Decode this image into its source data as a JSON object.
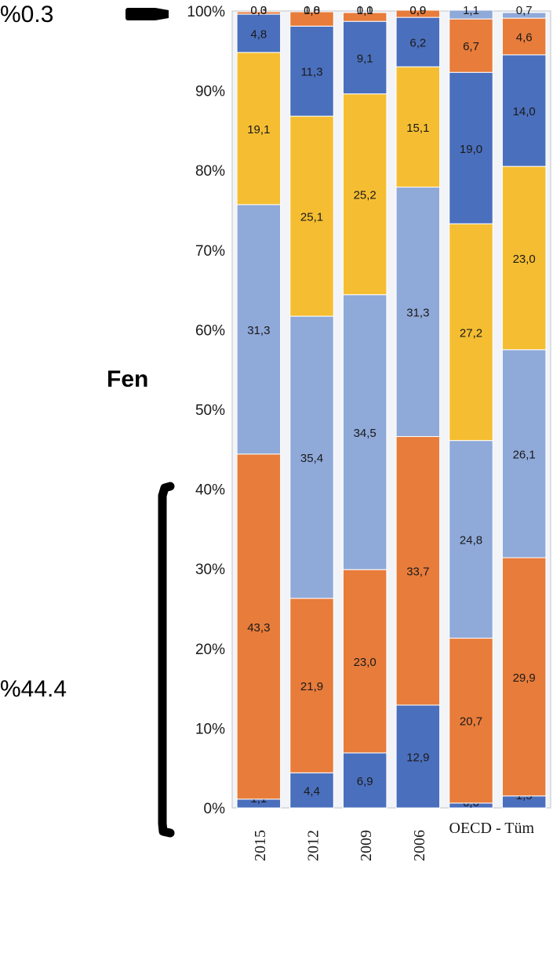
{
  "annotations": {
    "top_percent": "%0.3",
    "subject": "Fen",
    "bottom_percent": "%44.4"
  },
  "colors": {
    "dark_blue": "#4a6fbd",
    "orange": "#e87c3b",
    "light_blue": "#8fa9d9",
    "yellow": "#f5be32",
    "bracket": "#000000"
  },
  "chart_data": {
    "type": "bar",
    "stacked": true,
    "categories": [
      "2015",
      "2012",
      "2009",
      "2006",
      "OECD - Tüm"
    ],
    "category_labels": [
      "2015",
      "2012",
      "2009",
      "2006",
      "OECD - Tüm"
    ],
    "columns": [
      {
        "category": "2015",
        "segments": [
          {
            "value": 1.1,
            "label": "1,1",
            "color": "dark_blue"
          },
          {
            "value": 43.3,
            "label": "43,3",
            "color": "orange"
          },
          {
            "value": 31.3,
            "label": "31,3",
            "color": "light_blue"
          },
          {
            "value": 19.1,
            "label": "19,1",
            "color": "yellow"
          },
          {
            "value": 4.8,
            "label": "4,8",
            "color": "dark_blue"
          },
          {
            "value": 0.3,
            "label": "0,3",
            "color": "orange"
          },
          {
            "value": 0.0,
            "label": "0,0",
            "color": "light_blue"
          }
        ]
      },
      {
        "category": "2012",
        "segments": [
          {
            "value": 4.4,
            "label": "4,4",
            "color": "dark_blue"
          },
          {
            "value": 21.9,
            "label": "21,9",
            "color": "orange"
          },
          {
            "value": 35.4,
            "label": "35,4",
            "color": "light_blue"
          },
          {
            "value": 25.1,
            "label": "25,1",
            "color": "yellow"
          },
          {
            "value": 11.3,
            "label": "11,3",
            "color": "dark_blue"
          },
          {
            "value": 1.8,
            "label": "1,8",
            "color": "orange"
          },
          {
            "value": 0.0,
            "label": "0,0",
            "color": "light_blue"
          }
        ]
      },
      {
        "category": "2009",
        "segments": [
          {
            "value": 6.9,
            "label": "6,9",
            "color": "dark_blue"
          },
          {
            "value": 23.0,
            "label": "23,0",
            "color": "orange"
          },
          {
            "value": 34.5,
            "label": "34,5",
            "color": "light_blue"
          },
          {
            "value": 25.2,
            "label": "25,2",
            "color": "yellow"
          },
          {
            "value": 9.1,
            "label": "9,1",
            "color": "dark_blue"
          },
          {
            "value": 1.1,
            "label": "1,1",
            "color": "orange"
          },
          {
            "value": 0.0,
            "label": "0,0",
            "color": "light_blue"
          }
        ]
      },
      {
        "category": "2006",
        "segments": [
          {
            "value": 12.9,
            "label": "12,9",
            "color": "dark_blue"
          },
          {
            "value": 33.7,
            "label": "33,7",
            "color": "orange"
          },
          {
            "value": 31.3,
            "label": "31,3",
            "color": "light_blue"
          },
          {
            "value": 15.1,
            "label": "15,1",
            "color": "yellow"
          },
          {
            "value": 6.2,
            "label": "6,2",
            "color": "dark_blue"
          },
          {
            "value": 0.9,
            "label": "0,9",
            "color": "orange"
          },
          {
            "value": 0.0,
            "label": "0,0",
            "color": "light_blue"
          }
        ]
      },
      {
        "category": "OECD - Tüm",
        "segments": [
          {
            "value": 0.6,
            "label": "0,6",
            "color": "dark_blue"
          },
          {
            "value": 20.7,
            "label": "20,7",
            "color": "orange"
          },
          {
            "value": 24.8,
            "label": "24,8",
            "color": "light_blue"
          },
          {
            "value": 27.2,
            "label": "27,2",
            "color": "yellow"
          },
          {
            "value": 19.0,
            "label": "19,0",
            "color": "dark_blue"
          },
          {
            "value": 6.7,
            "label": "6,7",
            "color": "orange"
          },
          {
            "value": 1.1,
            "label": "1,1",
            "color": "light_blue"
          }
        ]
      },
      {
        "category": "",
        "segments": [
          {
            "value": 1.5,
            "label": "1,5",
            "color": "dark_blue"
          },
          {
            "value": 29.9,
            "label": "29,9",
            "color": "orange"
          },
          {
            "value": 26.1,
            "label": "26,1",
            "color": "light_blue"
          },
          {
            "value": 23.0,
            "label": "23,0",
            "color": "yellow"
          },
          {
            "value": 14.0,
            "label": "14,0",
            "color": "dark_blue"
          },
          {
            "value": 4.6,
            "label": "4,6",
            "color": "orange"
          },
          {
            "value": 0.7,
            "label": "0,7",
            "color": "light_blue"
          }
        ]
      }
    ],
    "y_ticks": [
      "0%",
      "10%",
      "20%",
      "30%",
      "40%",
      "50%",
      "60%",
      "70%",
      "80%",
      "90%",
      "100%"
    ],
    "ylim": [
      0,
      100
    ],
    "grid": false,
    "title": "",
    "xlabel": "",
    "ylabel": ""
  }
}
